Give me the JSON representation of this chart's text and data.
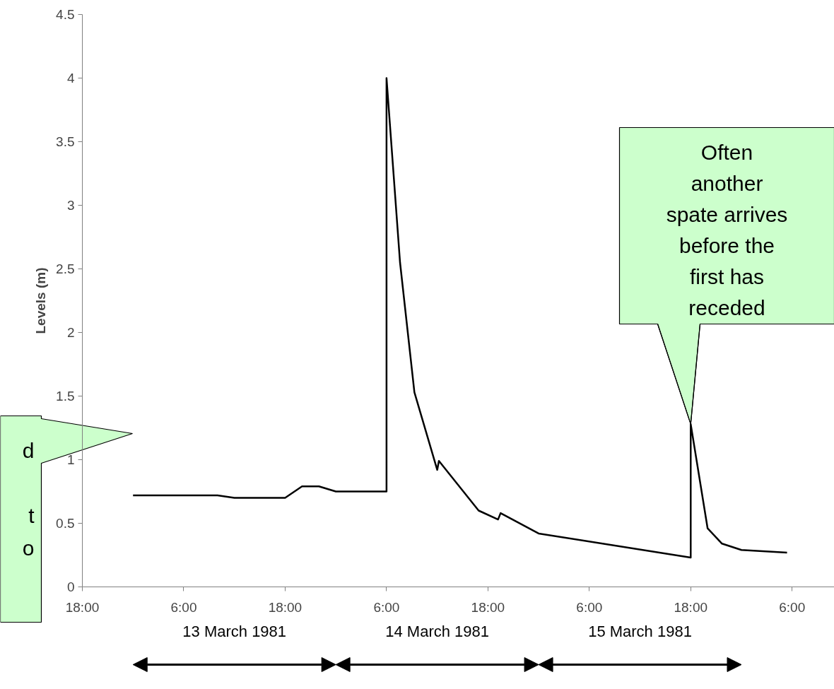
{
  "chart_data": {
    "type": "line",
    "ylabel": "Levels (m)",
    "x": [
      "1981-03-13T00:00",
      "1981-03-13T10:00",
      "1981-03-13T12:00",
      "1981-03-13T18:00",
      "1981-03-13T20:00",
      "1981-03-13T22:00",
      "1981-03-14T00:00",
      "1981-03-14T06:00",
      "1981-03-14T06:00",
      "1981-03-14T07:36",
      "1981-03-14T09:18",
      "1981-03-14T12:00",
      "1981-03-14T12:12",
      "1981-03-14T16:54",
      "1981-03-14T19:12",
      "1981-03-14T19:30",
      "1981-03-15T00:00",
      "1981-03-15T18:00",
      "1981-03-15T18:00",
      "1981-03-15T20:00",
      "1981-03-15T21:42",
      "1981-03-16T00:00",
      "1981-03-16T05:24"
    ],
    "series": [
      {
        "color": "#000000",
        "values": [
          0.72,
          0.72,
          0.7,
          0.7,
          0.79,
          0.79,
          0.75,
          0.75,
          4.0,
          2.55,
          1.53,
          0.92,
          0.99,
          0.6,
          0.53,
          0.58,
          0.42,
          0.23,
          1.28,
          0.46,
          0.34,
          0.29,
          0.27
        ]
      }
    ],
    "xlim": [
      "1981-03-12T18:00",
      "1981-03-16T11:00"
    ],
    "ylim": [
      0,
      4.5
    ],
    "xticks": [
      {
        "value": "1981-03-12T18:00",
        "label": "18:00"
      },
      {
        "value": "1981-03-13T06:00",
        "label": "6:00"
      },
      {
        "value": "1981-03-13T18:00",
        "label": "18:00"
      },
      {
        "value": "1981-03-14T06:00",
        "label": "6:00"
      },
      {
        "value": "1981-03-14T18:00",
        "label": "18:00"
      },
      {
        "value": "1981-03-15T06:00",
        "label": "6:00"
      },
      {
        "value": "1981-03-15T18:00",
        "label": "18:00"
      },
      {
        "value": "1981-03-16T06:00",
        "label": "6:00"
      }
    ],
    "yticks": [
      0,
      0.5,
      1,
      1.5,
      2,
      2.5,
      3,
      3.5,
      4,
      4.5
    ],
    "grid": false,
    "marker": "none",
    "line_style": "solid",
    "annotations": [
      {
        "text": "Often\nanother\nspate arrives\nbefore the\nfirst has\nreceded",
        "x": "1981-03-15T18:00",
        "y": 1.28
      },
      "d\n\nt\no",
      "13 March 1981",
      "14 March 1981",
      "15 March 1981"
    ]
  }
}
